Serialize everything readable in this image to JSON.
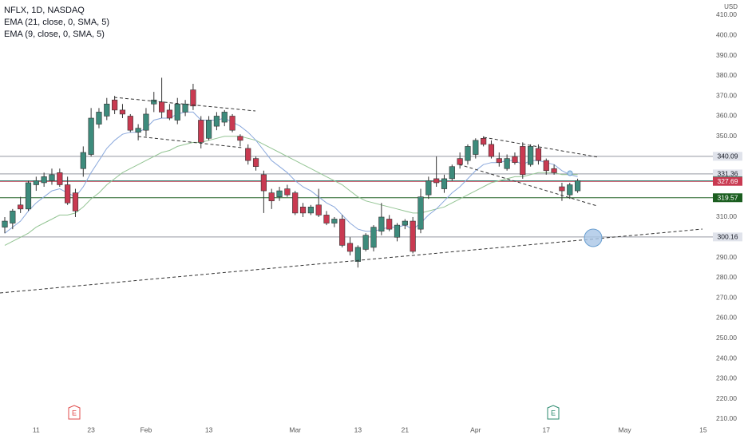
{
  "chart_data": {
    "type": "candlestick",
    "legend": [
      "NFLX, 1D, NASDAQ",
      "EMA (21, close, 0, SMA, 5)",
      "EMA (9, close, 0, SMA, 5)"
    ],
    "currency": "USD",
    "categories": [
      null,
      null,
      null,
      null,
      "11",
      null,
      null,
      null,
      null,
      null,
      null,
      "23",
      null,
      null,
      null,
      null,
      null,
      null,
      "Feb",
      null,
      null,
      null,
      null,
      null,
      null,
      null,
      "13",
      null,
      null,
      null,
      null,
      null,
      null,
      null,
      null,
      null,
      null,
      "Mar",
      null,
      null,
      null,
      null,
      null,
      null,
      null,
      "13",
      null,
      null,
      null,
      null,
      null,
      "21",
      null,
      null,
      null,
      null,
      null,
      null,
      null,
      null,
      "Apr",
      null,
      null,
      null,
      null,
      null,
      null,
      null,
      null,
      "17",
      null,
      null,
      null,
      null,
      null,
      null,
      null,
      null,
      null,
      "May",
      null,
      null,
      null,
      null,
      null,
      null,
      null,
      null,
      null,
      "15"
    ],
    "open": [
      305,
      307,
      316,
      314,
      326,
      327,
      328,
      332,
      326,
      322,
      334,
      341,
      356,
      360,
      368,
      363,
      360,
      352,
      353,
      366,
      367,
      363,
      358,
      362,
      373,
      358,
      349,
      355,
      357,
      360,
      350,
      344,
      339,
      331,
      322,
      320,
      324,
      322,
      315,
      312,
      316,
      311,
      307,
      309,
      297,
      288,
      294,
      295,
      303,
      309,
      300,
      306,
      308,
      304,
      321,
      329,
      324,
      329,
      339,
      338,
      341,
      349,
      346,
      339,
      334,
      340,
      345,
      336,
      344,
      338,
      334,
      325,
      321,
      323,
      null,
      null,
      null,
      null,
      null,
      null,
      null,
      null,
      null,
      null,
      null,
      null,
      null,
      null,
      null,
      null
    ],
    "high": [
      310,
      314,
      320,
      328,
      330,
      332,
      334,
      334,
      330,
      324,
      345,
      364,
      364,
      369,
      370,
      366,
      361,
      356,
      364,
      372,
      379,
      366,
      369,
      368,
      376,
      360,
      360,
      362,
      363,
      361,
      351,
      346,
      340,
      333,
      324,
      325,
      326,
      323,
      317,
      316,
      324,
      313,
      310,
      311,
      300,
      296,
      302,
      306,
      317,
      311,
      307,
      309,
      310,
      324,
      330,
      340,
      331,
      336,
      342,
      346,
      349,
      350,
      348,
      342,
      341,
      342,
      347,
      346,
      346,
      339,
      336,
      327,
      327,
      329,
      null,
      null,
      null,
      null,
      null,
      null,
      null,
      null,
      null,
      null,
      null,
      null,
      null,
      null,
      null,
      null
    ],
    "low": [
      302,
      304,
      312,
      313,
      323,
      325,
      326,
      325,
      316,
      310,
      330,
      340,
      354,
      358,
      361,
      359,
      352,
      348,
      350,
      362,
      359,
      358,
      356,
      360,
      363,
      344,
      348,
      353,
      355,
      352,
      345,
      336,
      333,
      312,
      314,
      318,
      320,
      311,
      310,
      311,
      310,
      306,
      305,
      295,
      291,
      285,
      293,
      293,
      301,
      303,
      298,
      304,
      292,
      302,
      319,
      325,
      322,
      328,
      334,
      336,
      339,
      345,
      339,
      335,
      333,
      336,
      329,
      335,
      336,
      331,
      331,
      318,
      319,
      322,
      null,
      null,
      null,
      null,
      null,
      null,
      null,
      null,
      null,
      null,
      null,
      null,
      null,
      null,
      null,
      null
    ],
    "close": [
      308,
      313,
      314,
      327,
      328,
      330,
      331,
      326,
      317,
      313,
      342,
      359,
      362,
      366,
      363,
      361,
      353,
      354,
      361,
      368,
      362,
      359,
      366,
      366,
      365,
      347,
      358,
      360,
      362,
      353,
      348,
      338,
      335,
      323,
      318,
      323,
      321,
      312,
      312,
      315,
      311,
      307,
      309,
      296,
      293,
      295,
      301,
      305,
      310,
      304,
      306,
      308,
      293,
      320,
      328,
      327,
      329,
      335,
      336,
      345,
      348,
      346,
      340,
      337,
      339,
      337,
      331,
      345,
      338,
      333,
      332,
      323,
      326,
      327.98,
      null,
      null,
      null,
      null,
      null,
      null,
      null,
      null,
      null,
      null,
      null,
      null,
      null,
      null,
      null,
      null
    ],
    "up_color": "#3d8b7c",
    "down_color": "#c93a51",
    "series": [
      {
        "name": "EMA (21, close, 0, SMA, 5)",
        "color": "#93c493",
        "values": [
          296,
          298,
          300,
          302,
          305,
          307,
          309,
          311,
          311,
          312,
          315,
          319,
          322,
          326,
          329,
          332,
          334,
          336,
          338,
          340,
          342,
          343,
          345,
          346,
          347,
          347,
          348,
          349,
          350,
          350,
          350,
          349,
          348,
          346,
          344,
          342,
          340,
          338,
          336,
          334,
          332,
          330,
          328,
          326,
          323,
          320,
          318,
          317,
          316,
          315,
          314,
          313,
          312,
          312,
          313,
          314,
          315,
          317,
          319,
          321,
          323,
          325,
          327,
          328,
          329,
          330,
          330,
          331,
          332,
          332,
          332,
          331,
          331,
          331,
          null,
          null,
          null,
          null,
          null,
          null,
          null,
          null,
          null,
          null,
          null,
          null,
          null,
          null,
          null,
          null
        ]
      },
      {
        "name": "EMA (9, close, 0, SMA, 5)",
        "color": "#8aa8dc",
        "values": [
          302,
          305,
          308,
          313,
          317,
          320,
          323,
          324,
          322,
          320,
          325,
          332,
          338,
          344,
          348,
          351,
          352,
          352,
          354,
          358,
          359,
          359,
          361,
          362,
          362,
          358,
          358,
          358,
          359,
          357,
          355,
          352,
          348,
          343,
          338,
          335,
          332,
          328,
          325,
          323,
          320,
          317,
          315,
          311,
          307,
          304,
          303,
          303,
          304,
          305,
          305,
          306,
          304,
          307,
          311,
          314,
          318,
          322,
          325,
          329,
          333,
          336,
          337,
          337,
          338,
          338,
          336,
          338,
          338,
          337,
          336,
          333,
          331,
          330,
          null,
          null,
          null,
          null,
          null,
          null,
          null,
          null,
          null,
          null,
          null,
          null,
          null,
          null,
          null,
          null
        ]
      }
    ],
    "price_lines": [
      {
        "value": 340.09,
        "color": "#9598a1",
        "label_color": "#e0e3eb",
        "text_color": "#131722"
      },
      {
        "value": 331.36,
        "color": "#9598a1",
        "label_color": "#e0e3eb",
        "text_color": "#131722"
      },
      {
        "value": 327.98,
        "color": "#089981",
        "label_color": "#2b8a6e",
        "text_color": "#ffffff"
      },
      {
        "value": 327.69,
        "color": "#c93a51",
        "label_color": "#c93a51",
        "text_color": "#ffffff"
      },
      {
        "value": 319.57,
        "color": "#1b5e20",
        "label_color": "#1b5e20",
        "text_color": "#ffffff"
      },
      {
        "value": 300.16,
        "color": "#9598a1",
        "label_color": "#e0e3eb",
        "text_color": "#131722"
      }
    ],
    "annotations": [
      "E",
      "E"
    ],
    "ylim": [
      208,
      417.5
    ],
    "yticks": [
      {
        "value": 210,
        "label": "210.00"
      },
      {
        "value": 220,
        "label": "220.00"
      },
      {
        "value": 230,
        "label": "230.00"
      },
      {
        "value": 240,
        "label": "240.00"
      },
      {
        "value": 250,
        "label": "250.00"
      },
      {
        "value": 260,
        "label": "260.00"
      },
      {
        "value": 270,
        "label": "270.00"
      },
      {
        "value": 280,
        "label": "280.00"
      },
      {
        "value": 290,
        "label": "290.00"
      },
      {
        "value": 300,
        "label": "300.00"
      },
      {
        "value": 310,
        "label": "310.00"
      },
      {
        "value": 320,
        "label": "320.00"
      },
      {
        "value": 330,
        "label": "330.00"
      },
      {
        "value": 340,
        "label": "340.00"
      },
      {
        "value": 350,
        "label": "350.00"
      },
      {
        "value": 360,
        "label": "360.00"
      },
      {
        "value": 370,
        "label": "370.00"
      },
      {
        "value": 380,
        "label": "380.00"
      },
      {
        "value": 390,
        "label": "390.00"
      },
      {
        "value": 400,
        "label": "400.00"
      },
      {
        "value": 410,
        "label": "410.00"
      }
    ],
    "grid": false
  }
}
